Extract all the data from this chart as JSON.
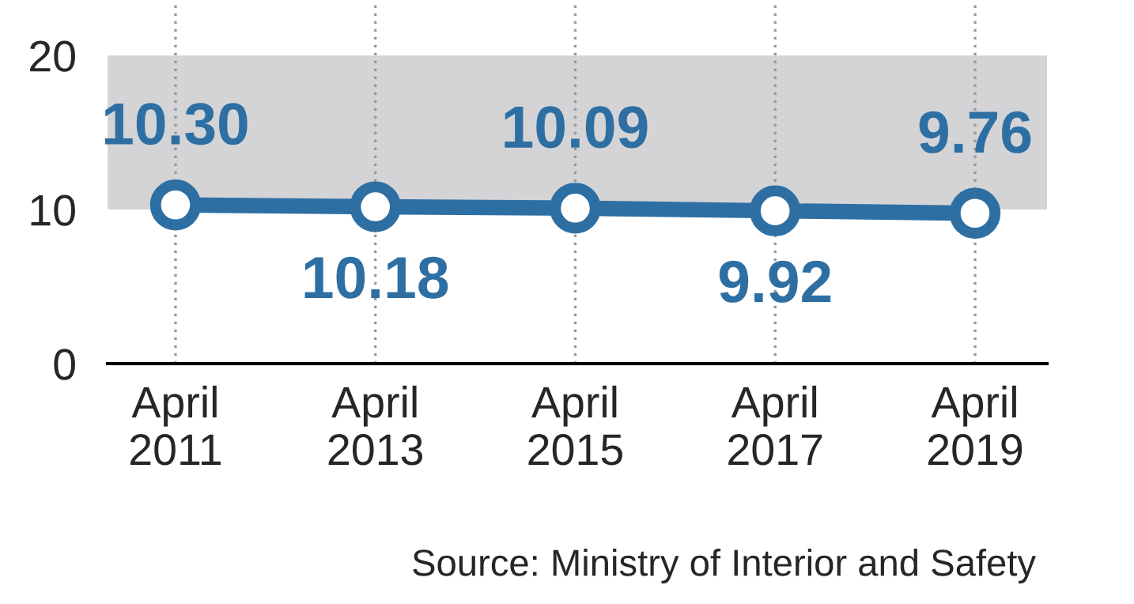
{
  "chart_data": {
    "type": "line",
    "categories": [
      "April\n2011",
      "April\n2013",
      "April\n2015",
      "April\n2017",
      "April\n2019"
    ],
    "series": [
      {
        "color": "#2e6fa3",
        "values": [
          10.3,
          10.18,
          10.09,
          9.92,
          9.76
        ],
        "value_labels": [
          "10.30",
          "10.18",
          "10.09",
          "9.92",
          "9.76"
        ]
      }
    ],
    "ylim": [
      0,
      23.6
    ],
    "yticks": [
      0,
      10,
      20
    ],
    "bands": [
      {
        "axis": "y",
        "from": 10,
        "to": 20,
        "color": "#d4d4d7"
      }
    ],
    "grid": "x",
    "marker": "circle",
    "line_style": "solid",
    "legend": false,
    "annotations": [
      "Source: Ministry of Interior and Safety"
    ]
  }
}
